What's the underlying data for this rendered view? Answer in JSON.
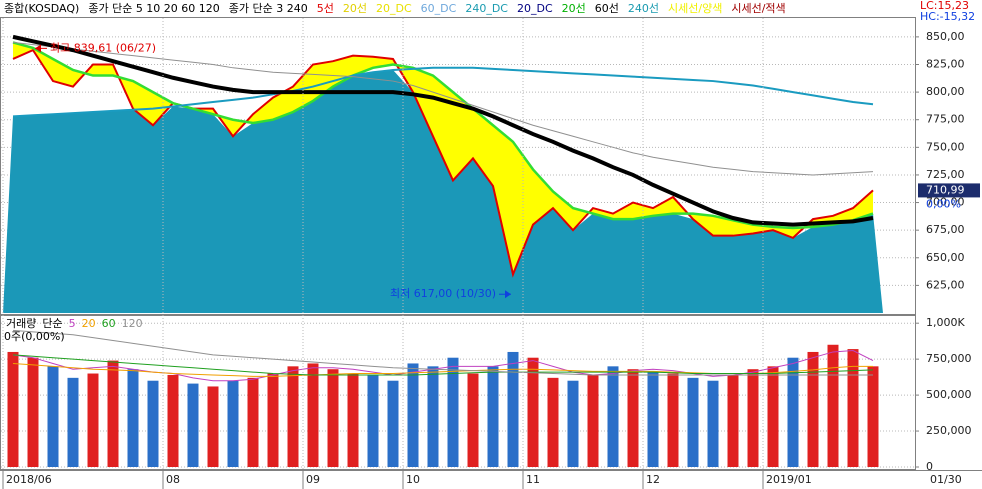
{
  "header": {
    "items": [
      {
        "text": "종합(KOSDAQ)",
        "color": "#000000"
      },
      {
        "text": "종가 단순 5  10  20  60  120",
        "color": "#000000"
      },
      {
        "text": "종가 단순 3  240",
        "color": "#000000"
      },
      {
        "text": "5선",
        "color": "#e00000"
      },
      {
        "text": "20선",
        "color": "#e0d000"
      },
      {
        "text": "20_DC",
        "color": "#e8e000"
      },
      {
        "text": "60_DC",
        "color": "#6fa8dc"
      },
      {
        "text": "240_DC",
        "color": "#1a9bb0"
      },
      {
        "text": "20_DC",
        "color": "#000080"
      },
      {
        "text": "20선",
        "color": "#00b000"
      },
      {
        "text": "60선",
        "color": "#000000"
      },
      {
        "text": "240선",
        "color": "#1a9bb0"
      },
      {
        "text": "시세선/양색",
        "color": "#f0f000"
      },
      {
        "text": "시세선/적색",
        "color": "#a00000"
      }
    ],
    "lc": "LC:15,23",
    "hc": "HC:-15,32"
  },
  "chart_data": [
    {
      "type": "line",
      "ylim": [
        600,
        868
      ],
      "yticks": [
        {
          "value": 850,
          "label": "850,00"
        },
        {
          "value": 825,
          "label": "825,00"
        },
        {
          "value": 800,
          "label": "800,00"
        },
        {
          "value": 775,
          "label": "775,00"
        },
        {
          "value": 750,
          "label": "750,00"
        },
        {
          "value": 725,
          "label": "725,00"
        },
        {
          "value": 700,
          "label": "700,00"
        },
        {
          "value": 675,
          "label": "675,00"
        },
        {
          "value": 650,
          "label": "650,00"
        },
        {
          "value": 625,
          "label": "625,00"
        }
      ],
      "grid": true,
      "area_color": "#1b98b8",
      "band_color": "#ffff00",
      "series": [
        {
          "color": "#e00000",
          "values": [
            830,
            838,
            810,
            805,
            825,
            825,
            785,
            770,
            790,
            785,
            785,
            760,
            780,
            795,
            805,
            825,
            828,
            833,
            832,
            830,
            800,
            760,
            720,
            740,
            715,
            635,
            680,
            695,
            675,
            695,
            690,
            700,
            695,
            705,
            685,
            670,
            670,
            672,
            675,
            668,
            685,
            688,
            695,
            710.99
          ]
        },
        {
          "color": "#33dd33",
          "values": [
            845,
            840,
            830,
            820,
            815,
            815,
            810,
            800,
            790,
            785,
            780,
            775,
            772,
            775,
            782,
            792,
            805,
            815,
            822,
            825,
            822,
            815,
            800,
            785,
            770,
            755,
            730,
            710,
            695,
            690,
            685,
            685,
            688,
            690,
            690,
            688,
            684,
            680,
            678,
            677,
            678,
            680,
            684,
            690
          ]
        },
        {
          "color": "#1a9bc0",
          "values": [
            778,
            779,
            780,
            781,
            782,
            783,
            784,
            785,
            787,
            789,
            791,
            793,
            795,
            798,
            801,
            805,
            810,
            815,
            818,
            820,
            821,
            822,
            822,
            822,
            821,
            820,
            819,
            818,
            817,
            816,
            815,
            814,
            813,
            812,
            811,
            810,
            808,
            806,
            803,
            800,
            797,
            794,
            791,
            789
          ]
        },
        {
          "color": "#909090",
          "values": [
            845,
            843,
            841,
            839,
            837,
            835,
            833,
            831,
            829,
            827,
            825,
            822,
            820,
            818,
            817,
            816,
            815,
            814,
            812,
            810,
            806,
            800,
            794,
            788,
            782,
            776,
            770,
            765,
            760,
            755,
            750,
            745,
            741,
            738,
            735,
            732,
            730,
            728,
            727,
            726,
            725,
            726,
            727,
            728
          ]
        },
        {
          "color": "#000000",
          "values": [
            850,
            846,
            842,
            838,
            833,
            828,
            823,
            818,
            813,
            809,
            805,
            802,
            800,
            800,
            800,
            800,
            800,
            800,
            800,
            800,
            798,
            795,
            790,
            785,
            778,
            770,
            762,
            755,
            747,
            740,
            732,
            725,
            716,
            708,
            700,
            692,
            686,
            682,
            681,
            680,
            681,
            682,
            683,
            686
          ]
        }
      ],
      "high": {
        "text": "최고 839,61 (06/27)",
        "value": 839.61
      },
      "low": {
        "text": "최저 617,00 (10/30)",
        "value": 617
      },
      "last_value": {
        "value": 710.99,
        "label": "710,99"
      },
      "change_label": "0,00%"
    },
    {
      "type": "bar",
      "categories": [
        "2018/06",
        null,
        null,
        null,
        null,
        null,
        null,
        null,
        "08",
        null,
        null,
        null,
        null,
        null,
        null,
        "09",
        null,
        null,
        null,
        null,
        "10",
        null,
        null,
        null,
        null,
        null,
        "11",
        null,
        null,
        null,
        null,
        null,
        "12",
        null,
        null,
        null,
        null,
        null,
        "2019/01",
        null,
        null,
        null,
        null,
        null
      ],
      "x_end_label": "01/30",
      "legend_label": "단순",
      "info": "0주(0,00%)",
      "ylim": [
        0,
        1050000
      ],
      "yticks": [
        {
          "value": 1000000,
          "label": "1,000K"
        },
        {
          "value": 750000,
          "label": "750,000"
        },
        {
          "value": 500000,
          "label": "500,000"
        },
        {
          "value": 250000,
          "label": "250,000"
        },
        0
      ],
      "grid": true,
      "series": [
        {
          "name": "거래량",
          "up_color": "#e02020",
          "down_color": "#2a6fc8",
          "values": [
            800000,
            760000,
            700000,
            620000,
            650000,
            740000,
            680000,
            600000,
            640000,
            580000,
            560000,
            600000,
            620000,
            650000,
            700000,
            720000,
            680000,
            650000,
            640000,
            600000,
            720000,
            700000,
            760000,
            650000,
            700000,
            800000,
            760000,
            620000,
            600000,
            640000,
            700000,
            680000,
            660000,
            650000,
            620000,
            600000,
            640000,
            680000,
            700000,
            760000,
            800000,
            850000,
            820000,
            700000
          ]
        },
        {
          "name": "5",
          "color": "#c040c0",
          "values": [
            780000,
            760000,
            720000,
            680000,
            690000,
            700000,
            680000,
            660000,
            650000,
            620000,
            600000,
            600000,
            610000,
            640000,
            670000,
            690000,
            690000,
            680000,
            660000,
            640000,
            660000,
            680000,
            700000,
            700000,
            700000,
            720000,
            740000,
            700000,
            660000,
            640000,
            650000,
            670000,
            680000,
            670000,
            650000,
            630000,
            640000,
            660000,
            690000,
            720000,
            760000,
            800000,
            810000,
            740000
          ]
        },
        {
          "name": "20",
          "color": "#f0a000",
          "values": [
            720000,
            710000,
            700000,
            690000,
            680000,
            675000,
            670000,
            660000,
            650000,
            645000,
            640000,
            635000,
            630000,
            630000,
            635000,
            640000,
            645000,
            650000,
            650000,
            650000,
            655000,
            660000,
            665000,
            670000,
            675000,
            680000,
            680000,
            675000,
            670000,
            665000,
            665000,
            665000,
            665000,
            660000,
            655000,
            650000,
            650000,
            650000,
            655000,
            665000,
            675000,
            690000,
            700000,
            700000
          ]
        },
        {
          "name": "60",
          "color": "#20a020",
          "values": [
            780000,
            770000,
            760000,
            750000,
            740000,
            730000,
            720000,
            710000,
            700000,
            690000,
            680000,
            670000,
            660000,
            650000,
            645000,
            640000,
            640000,
            640000,
            640000,
            640000,
            640000,
            645000,
            650000,
            655000,
            660000,
            660000,
            660000,
            660000,
            660000,
            660000,
            660000,
            660000,
            660000,
            655000,
            650000,
            650000,
            650000,
            650000,
            650000,
            655000,
            660000,
            665000,
            670000,
            675000
          ]
        },
        {
          "name": "120",
          "color": "#909090",
          "values": [
            950000,
            940000,
            930000,
            920000,
            900000,
            880000,
            860000,
            840000,
            820000,
            800000,
            780000,
            770000,
            760000,
            750000,
            740000,
            730000,
            720000,
            710000,
            700000,
            690000,
            685000,
            680000,
            675000,
            670000,
            665000,
            660000,
            655000,
            650000,
            645000,
            640000,
            640000,
            640000,
            640000,
            640000,
            640000,
            640000,
            640000,
            640000,
            640000,
            640000,
            640000,
            640000,
            640000,
            640000
          ]
        }
      ]
    }
  ]
}
